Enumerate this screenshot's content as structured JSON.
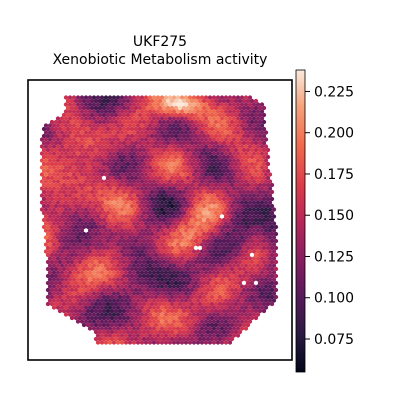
{
  "chart_data": {
    "type": "heatmap",
    "title_lines": [
      "UKF275",
      "Xenobiotic Metabolism activity"
    ],
    "xlabel": "",
    "ylabel": "",
    "colormap": "rocket",
    "colorbar": {
      "vmin": 0.055,
      "vmax": 0.238,
      "ticks": [
        "0.075",
        "0.100",
        "0.125",
        "0.150",
        "0.175",
        "0.200",
        "0.225"
      ],
      "tick_values": [
        0.075,
        0.1,
        0.125,
        0.15,
        0.175,
        0.2,
        0.225
      ]
    },
    "colors": {
      "background": "#ffffff",
      "frame": "#000000",
      "missing_spot": "#ffffff"
    },
    "value_summary": {
      "typical_range": [
        0.09,
        0.2
      ],
      "high_area": "top-center",
      "low_area": "right edge"
    }
  }
}
